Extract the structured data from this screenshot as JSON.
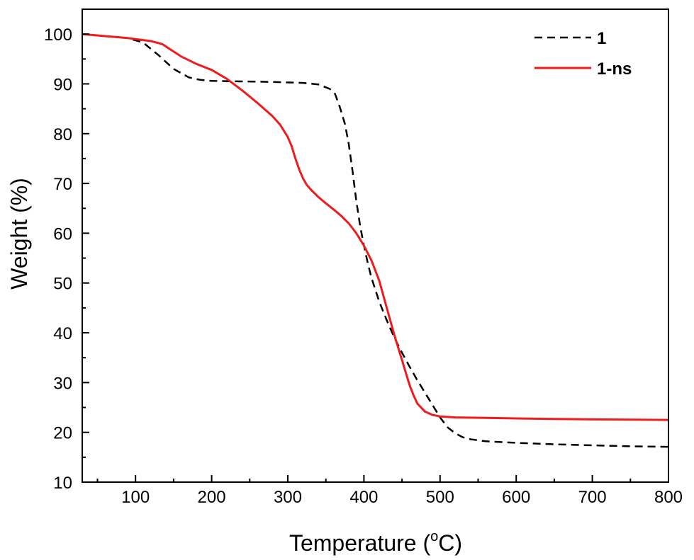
{
  "chart_data": {
    "type": "line",
    "xlabel": "Temperature (",
    "xlabel_sup": "o",
    "xlabel_end": "C)",
    "ylabel": "Weight (%)",
    "xlim": [
      30,
      800
    ],
    "ylim": [
      10,
      105
    ],
    "x_ticks": [
      100,
      200,
      300,
      400,
      500,
      600,
      700,
      800
    ],
    "y_ticks": [
      10,
      20,
      30,
      40,
      50,
      60,
      70,
      80,
      90,
      100
    ],
    "x_tick_labels": [
      "100",
      "200",
      "300",
      "400",
      "500",
      "600",
      "700",
      "800"
    ],
    "y_tick_labels": [
      "10",
      "20",
      "30",
      "40",
      "50",
      "60",
      "70",
      "80",
      "90",
      "100"
    ],
    "grid": false,
    "legend_position": "top-right",
    "series": [
      {
        "name": "1",
        "color": "#000000",
        "style": "dashed",
        "x": [
          30,
          60,
          90,
          110,
          130,
          150,
          170,
          185,
          200,
          240,
          280,
          320,
          340,
          355,
          362,
          368,
          375,
          380,
          385,
          390,
          395,
          400,
          405,
          410,
          420,
          430,
          440,
          450,
          460,
          470,
          480,
          490,
          500,
          510,
          520,
          530,
          540,
          560,
          600,
          650,
          700,
          750,
          800
        ],
        "y": [
          100,
          99.6,
          99.2,
          98.3,
          95.8,
          93.0,
          91.3,
          90.8,
          90.6,
          90.5,
          90.4,
          90.2,
          89.9,
          89.0,
          88.0,
          85.5,
          82.0,
          78.0,
          72.5,
          66.5,
          61.5,
          57.5,
          54.0,
          51.0,
          46.3,
          42.5,
          39.0,
          36.0,
          33.2,
          30.5,
          28.0,
          25.5,
          23.0,
          21.0,
          19.8,
          19.0,
          18.6,
          18.2,
          17.9,
          17.6,
          17.4,
          17.2,
          17.1
        ]
      },
      {
        "name": "1-ns",
        "color": "#ee1c1c",
        "style": "solid",
        "x": [
          30,
          60,
          90,
          110,
          120,
          135,
          145,
          160,
          180,
          200,
          220,
          240,
          260,
          280,
          290,
          300,
          305,
          310,
          315,
          320,
          325,
          330,
          340,
          350,
          360,
          370,
          380,
          390,
          400,
          410,
          420,
          430,
          440,
          450,
          460,
          465,
          470,
          480,
          490,
          500,
          520,
          560,
          600,
          650,
          700,
          750,
          800
        ],
        "y": [
          100,
          99.6,
          99.2,
          98.8,
          98.6,
          98.0,
          97.0,
          95.5,
          94.0,
          92.8,
          91.0,
          88.7,
          86.2,
          83.5,
          81.8,
          79.3,
          77.5,
          75.0,
          72.8,
          71.0,
          69.7,
          68.8,
          67.3,
          66.0,
          64.8,
          63.5,
          62.0,
          60.0,
          57.5,
          54.5,
          50.5,
          45.0,
          39.5,
          34.5,
          29.5,
          27.5,
          25.8,
          24.2,
          23.5,
          23.2,
          23.0,
          22.9,
          22.8,
          22.7,
          22.6,
          22.55,
          22.5
        ]
      }
    ]
  }
}
